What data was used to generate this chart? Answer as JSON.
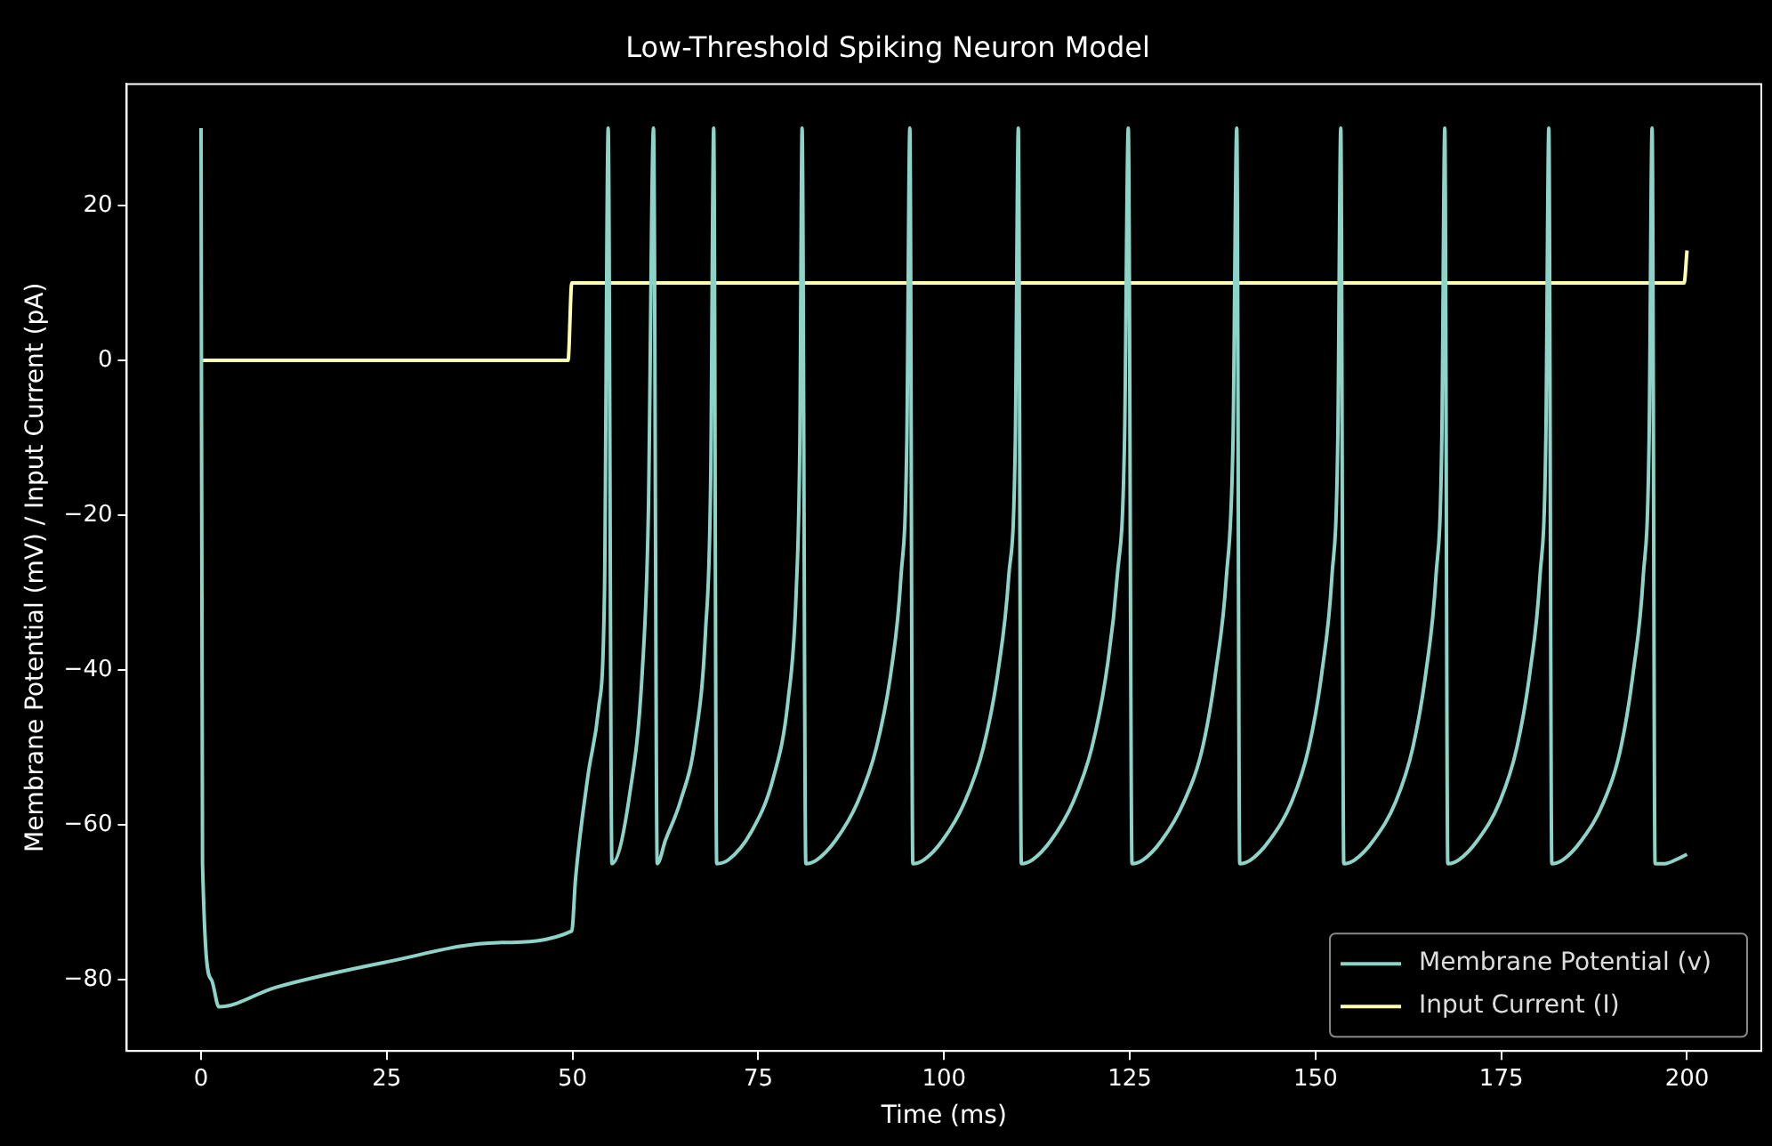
{
  "chart_data": {
    "type": "line",
    "title": "Low-Threshold Spiking Neuron Model",
    "xlabel": "Time (ms)",
    "ylabel": "Membrane Potential (mV) / Input Current (pA)",
    "xlim": [
      -10,
      210
    ],
    "xticks": [
      0,
      25,
      50,
      75,
      100,
      125,
      150,
      175,
      200
    ],
    "ylim": [
      -89.2,
      35.7
    ],
    "yticks": [
      -80,
      -60,
      -40,
      -20,
      0,
      20
    ],
    "grid": false,
    "legend": "bottom right",
    "marker": "none",
    "line_style": "solid",
    "series": [
      {
        "name": "Membrane Potential (v)",
        "color": "#8dd3c7",
        "x": [
          0,
          0.2,
          1.4,
          2.4,
          10,
          25,
          40,
          49.9,
          50.4,
          52.1,
          53.5,
          54.3,
          54.8,
          55.3,
          57.7,
          59.4,
          60.2,
          60.9,
          61.4,
          62.5,
          64.5,
          66.5,
          67.9,
          68.6,
          69.0,
          69.4,
          71,
          74,
          77,
          79,
          80.1,
          80.6,
          80.9,
          81.4,
          82.9,
          85.4,
          88.4,
          90.9,
          92.9,
          94.2,
          95.0,
          95.4,
          95.8,
          97.3,
          99.8,
          102.8,
          105.3,
          107.3,
          108.7,
          109.6,
          110.0,
          110.4,
          111.9,
          114.4,
          117.4,
          119.9,
          121.9,
          123.3,
          124.3,
          124.8,
          125.3,
          126.8,
          129.3,
          132.3,
          134.8,
          136.6,
          138.0,
          138.9,
          139.4,
          139.8,
          141.3,
          143.8,
          146.8,
          149.1,
          150.9,
          152.2,
          153.0,
          153.4,
          153.8,
          155.3,
          157.8,
          160.8,
          163.1,
          164.9,
          166.2,
          167.0,
          167.4,
          167.8,
          169.3,
          171.8,
          174.8,
          177.1,
          178.9,
          180.2,
          181.0,
          181.4,
          181.8,
          183.3,
          185.8,
          188.8,
          191.1,
          192.8,
          194.1,
          194.9,
          195.3,
          195.7,
          197,
          198.5,
          200
        ],
        "values": [
          30,
          -65,
          -80,
          -83.5,
          -81,
          -77.7,
          -75.2,
          -73.7,
          -67,
          -53.5,
          -45,
          -30,
          30,
          -65,
          -56,
          -40,
          -20,
          30,
          -65,
          -62,
          -57,
          -49,
          -35,
          -15,
          30,
          -65,
          -64.5,
          -61,
          -54,
          -44,
          -30,
          -10,
          30,
          -65,
          -64.5,
          -62,
          -57,
          -50,
          -40,
          -28,
          -10,
          30,
          -65,
          -64.5,
          -62,
          -57,
          -50,
          -40,
          -28,
          -10,
          30,
          -65,
          -64.5,
          -62,
          -57,
          -50,
          -40,
          -28,
          -10,
          30,
          -65,
          -64.5,
          -62,
          -57,
          -50,
          -40,
          -28,
          -10,
          30,
          -65,
          -64.5,
          -62,
          -57,
          -50,
          -40,
          -28,
          -10,
          30,
          -65,
          -64.5,
          -62,
          -57,
          -50,
          -40,
          -28,
          -10,
          30,
          -65,
          -64.5,
          -62,
          -57,
          -50,
          -40,
          -28,
          -10,
          30,
          -65,
          -64.5,
          -62,
          -57,
          -50,
          -40,
          -28,
          -10,
          30,
          -65,
          -65,
          -64.5,
          -63.8
        ]
      },
      {
        "name": "Input Current (I)",
        "color": "#ffffb3",
        "x": [
          0,
          49.4,
          49.9,
          199.6,
          200
        ],
        "values": [
          0,
          0,
          10,
          10,
          14.2
        ]
      }
    ]
  }
}
